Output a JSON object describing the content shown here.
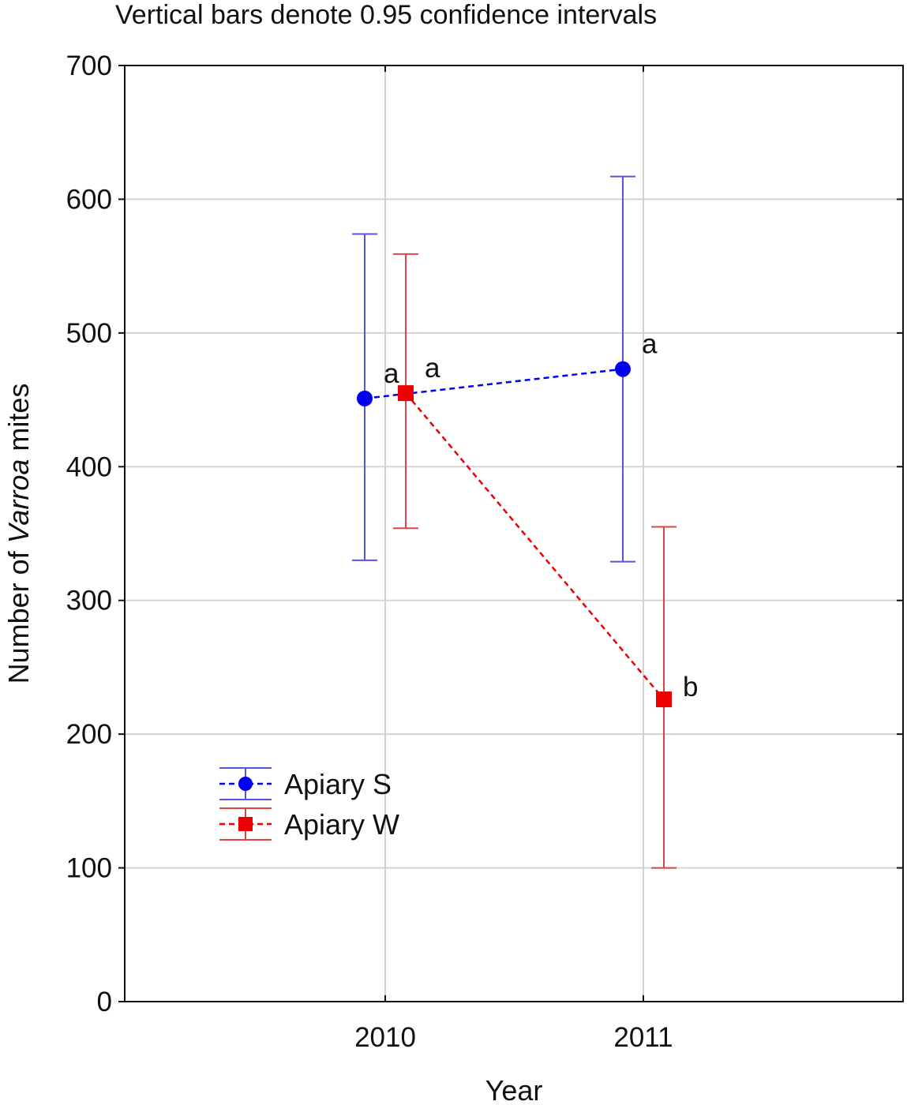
{
  "chart_data": {
    "type": "line",
    "subtitle": "Vertical bars denote 0.95 confidence intervals",
    "xlabel": "Year",
    "ylabel_prefix": "Number of ",
    "ylabel_italic": "Varroa",
    "ylabel_suffix": " mites",
    "categories": [
      "2010",
      "2011"
    ],
    "ylim": [
      0,
      700
    ],
    "yticks": [
      0,
      100,
      200,
      300,
      400,
      500,
      600,
      700
    ],
    "grid": true,
    "legend_position": "lower-left",
    "series": [
      {
        "name": "Apiary S",
        "color": "#0000ee",
        "error_color": "#5555dd",
        "marker": "circle",
        "line_style": "dashed",
        "values": [
          451,
          473
        ],
        "ci_low": [
          330,
          329
        ],
        "ci_high": [
          574,
          617
        ],
        "significance_labels": [
          "a",
          "a"
        ]
      },
      {
        "name": "Apiary W",
        "color": "#ee0000",
        "error_color": "#dd4444",
        "marker": "square",
        "line_style": "dashed",
        "values": [
          455,
          226
        ],
        "ci_low": [
          354,
          100
        ],
        "ci_high": [
          559,
          355
        ],
        "significance_labels": [
          "a",
          "b"
        ]
      }
    ]
  }
}
